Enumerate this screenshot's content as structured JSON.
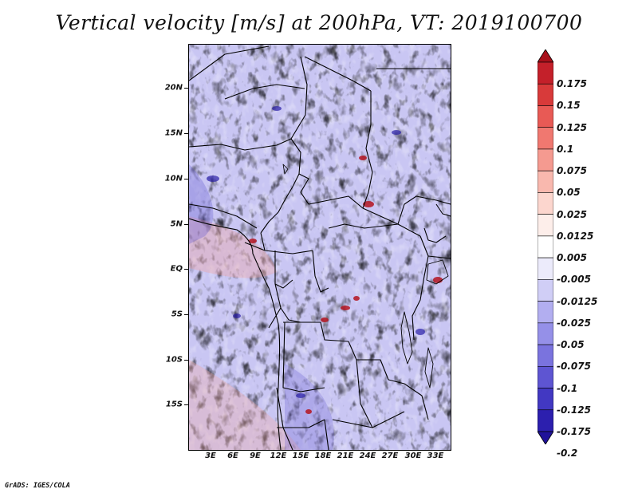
{
  "title": "Vertical velocity [m/s] at 200hPa, VT: 2019100700",
  "footer": "GrADS: IGES/COLA",
  "map": {
    "region": "Central Africa",
    "latitude_labels": [
      "20N",
      "15N",
      "10N",
      "5N",
      "EQ",
      "5S",
      "10S",
      "15S"
    ],
    "longitude_labels": [
      "3E",
      "6E",
      "9E",
      "12E",
      "15E",
      "18E",
      "21E",
      "24E",
      "27E",
      "30E",
      "33E"
    ],
    "lat_range": [
      -20,
      24.5
    ],
    "lon_range": [
      0,
      35
    ]
  },
  "colorbar": {
    "labels": [
      "0.175",
      "0.15",
      "0.125",
      "0.1",
      "0.075",
      "0.05",
      "0.025",
      "0.0125",
      "0.005",
      "-0.005",
      "-0.0125",
      "-0.025",
      "-0.05",
      "-0.075",
      "-0.1",
      "-0.125",
      "-0.175",
      "-0.2"
    ],
    "colors": [
      "#a8101a",
      "#c4202a",
      "#d83a3a",
      "#e85a55",
      "#f07870",
      "#f59a90",
      "#f9b8ae",
      "#fcd6ce",
      "#fdeeea",
      "#ffffff",
      "#ecebfb",
      "#d0cef6",
      "#b2aef0",
      "#9590e8",
      "#7a73de",
      "#5e55d2",
      "#4238c2",
      "#2c1fae",
      "#20129a"
    ]
  }
}
